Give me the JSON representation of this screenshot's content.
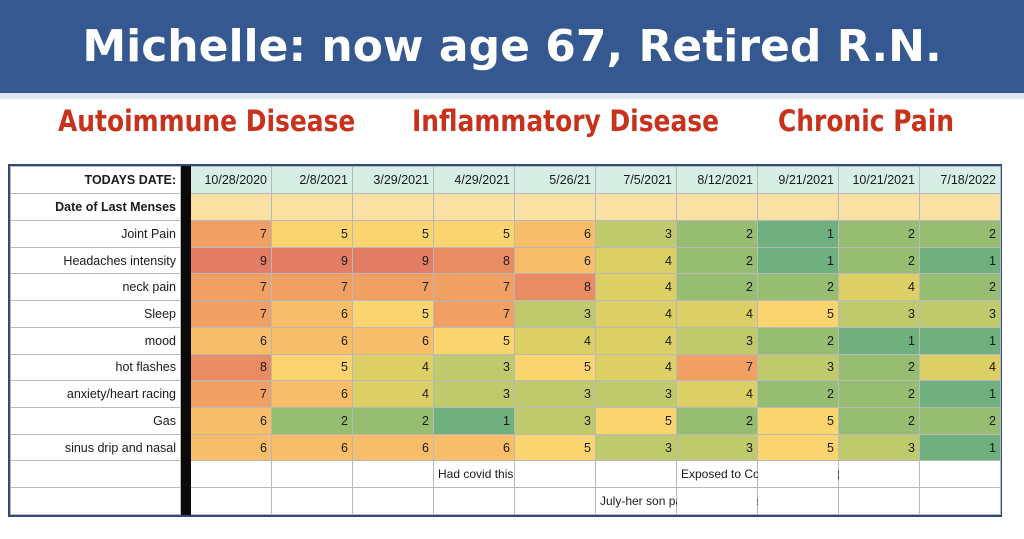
{
  "title": "Michelle: now age 67, Retired R.N.",
  "categories": [
    "Autoimmune Disease",
    "Inflammatory Disease",
    "Chronic Pain"
  ],
  "table": {
    "date_label": "TODAYS DATE:",
    "dates": [
      "10/28/2020",
      "2/8/2021",
      "3/29/2021",
      "4/29/2021",
      "5/26/21",
      "7/5/2021",
      "8/12/2021",
      "9/21/2021",
      "10/21/2021",
      "7/18/2022"
    ],
    "menses_label": "Date of Last Menses",
    "rows": [
      {
        "label": "Joint Pain",
        "values": [
          "7",
          "5",
          "5",
          "5",
          "6",
          "3",
          "2",
          "1",
          "2",
          "2"
        ]
      },
      {
        "label": "Headaches intensity",
        "values": [
          "9",
          "9",
          "9",
          "8",
          "6",
          "4",
          "2",
          "1",
          "2",
          "1"
        ]
      },
      {
        "label": "neck pain",
        "values": [
          "7",
          "7",
          "7",
          "7",
          "8",
          "4",
          "2",
          "2",
          "4",
          "2"
        ]
      },
      {
        "label": "Sleep",
        "values": [
          "7",
          "6",
          "5",
          "7",
          "3",
          "4",
          "4",
          "5",
          "3",
          "3"
        ]
      },
      {
        "label": "mood",
        "values": [
          "6",
          "6",
          "6",
          "5",
          "4",
          "4",
          "3",
          "2",
          "1",
          "1"
        ]
      },
      {
        "label": "hot flashes",
        "values": [
          "8",
          "5",
          "4",
          "3",
          "5",
          "4",
          "7",
          "3",
          "2",
          "4"
        ]
      },
      {
        "label": "anxiety/heart racing",
        "values": [
          "7",
          "6",
          "4",
          "3",
          "3",
          "3",
          "4",
          "2",
          "2",
          "1"
        ]
      },
      {
        "label": "Gas",
        "values": [
          "6",
          "2",
          "2",
          "1",
          "3",
          "5",
          "2",
          "5",
          "2",
          "2"
        ]
      },
      {
        "label": "sinus drip and nasal",
        "values": [
          "6",
          "6",
          "6",
          "6",
          "5",
          "3",
          "3",
          "5",
          "3",
          "1"
        ]
      }
    ],
    "notes": {
      "covid_april": "Had covid this month (April)",
      "covid_aug": "Exposed to Covid again (Aug)",
      "son": "July-her son passed away unexpectedly"
    },
    "scale_colors": {
      "1": "#6fb07e",
      "2": "#97bd73",
      "3": "#bfca6c",
      "4": "#dccf66",
      "5": "#fad46e",
      "6": "#f7bd68",
      "7": "#f0a062",
      "8": "#ea8c63",
      "9": "#e47d66"
    }
  }
}
